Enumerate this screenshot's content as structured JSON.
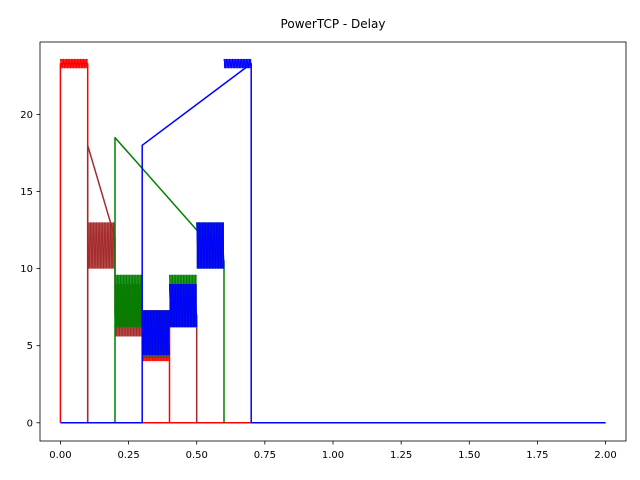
{
  "chart_data": {
    "type": "line",
    "title": "PowerTCP - Delay",
    "xlabel": "",
    "ylabel": "",
    "xlim": [
      -0.075,
      2.075
    ],
    "ylim": [
      -1.18,
      24.7
    ],
    "grid": false,
    "x_ticks": [
      0.0,
      0.25,
      0.5,
      0.75,
      1.0,
      1.25,
      1.5,
      1.75,
      2.0
    ],
    "x_tick_labels": [
      "0.00",
      "0.25",
      "0.50",
      "0.75",
      "1.00",
      "1.25",
      "1.50",
      "1.75",
      "2.00"
    ],
    "y_ticks": [
      0,
      5,
      10,
      15,
      20
    ],
    "y_tick_labels": [
      "0",
      "5",
      "10",
      "15",
      "20"
    ],
    "series": [
      {
        "color": "#ff0000",
        "segments": [
          {
            "x": [
              0.0,
              0.0,
              0.1,
              0.1,
              0.4,
              0.4,
              2.0
            ],
            "y": [
              0,
              23.3,
              23.3,
              0,
              0,
              0,
              0
            ]
          },
          {
            "x": [
              0.0,
              0.1
            ],
            "y": [
              23.0,
              23.6
            ],
            "band": true
          },
          {
            "x": [
              0.2,
              0.3
            ],
            "y": [
              6.3,
              7.5
            ],
            "band": true
          },
          {
            "x": [
              0.3,
              0.4
            ],
            "y": [
              4.0,
              7.3
            ],
            "band": true
          },
          {
            "x": [
              0.4,
              0.4
            ],
            "y": [
              7.0,
              0
            ]
          }
        ]
      },
      {
        "color": "#a52a2a",
        "segments": [
          {
            "x": [
              0.1,
              0.1,
              0.2,
              0.2,
              0.5,
              0.5
            ],
            "y": [
              0,
              18.0,
              12.0,
              7.0,
              7.0,
              0
            ]
          },
          {
            "x": [
              0.1,
              0.2
            ],
            "y": [
              10.0,
              13.0
            ],
            "band": true
          },
          {
            "x": [
              0.2,
              0.3
            ],
            "y": [
              5.6,
              9.0
            ],
            "band": true
          },
          {
            "x": [
              0.3,
              0.4
            ],
            "y": [
              4.2,
              7.3
            ],
            "band": true
          },
          {
            "x": [
              0.4,
              0.5
            ],
            "y": [
              6.2,
              9.0
            ],
            "band": true
          }
        ]
      },
      {
        "color": "#008000",
        "segments": [
          {
            "x": [
              0.2,
              0.2,
              0.6,
              0.6
            ],
            "y": [
              0,
              18.5,
              10.5,
              0
            ]
          },
          {
            "x": [
              0.2,
              0.3
            ],
            "y": [
              6.2,
              9.6
            ],
            "band": true
          },
          {
            "x": [
              0.3,
              0.4
            ],
            "y": [
              4.3,
              7.3
            ],
            "band": true
          },
          {
            "x": [
              0.4,
              0.5
            ],
            "y": [
              6.2,
              9.6
            ],
            "band": true
          },
          {
            "x": [
              0.5,
              0.6
            ],
            "y": [
              10.0,
              13.0
            ],
            "band": true
          }
        ]
      },
      {
        "color": "#0000ff",
        "segments": [
          {
            "x": [
              0.0,
              0.3,
              0.3,
              0.3,
              0.7,
              0.7,
              2.0
            ],
            "y": [
              0,
              0,
              1.7,
              18.0,
              23.3,
              0,
              0
            ]
          },
          {
            "x": [
              0.3,
              0.4
            ],
            "y": [
              4.4,
              7.3
            ],
            "band": true
          },
          {
            "x": [
              0.4,
              0.5
            ],
            "y": [
              6.2,
              9.0
            ],
            "band": true
          },
          {
            "x": [
              0.5,
              0.6
            ],
            "y": [
              10.0,
              13.0
            ],
            "band": true
          },
          {
            "x": [
              0.6,
              0.7
            ],
            "y": [
              23.0,
              23.6
            ],
            "band": true
          }
        ]
      }
    ]
  }
}
